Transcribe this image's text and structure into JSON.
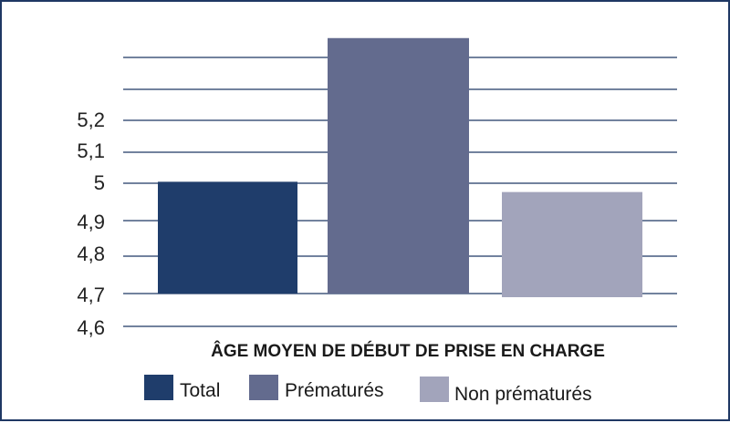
{
  "chart_data": {
    "type": "bar",
    "title": "",
    "xlabel": "ÂGE MOYEN DE DÉBUT DE PRISE EN CHARGE",
    "ylabel": "",
    "ylim": [
      4.6,
      5.5
    ],
    "yticks": [
      "4,6",
      "4,7",
      "4,8",
      "4,9",
      "5",
      "5,1",
      "5,2"
    ],
    "grid": true,
    "legend_position": "bottom",
    "series": [
      {
        "name": "Total",
        "value": 5.03,
        "color": "#1f3d6b"
      },
      {
        "name": "Prématurés",
        "value": 5.45,
        "color": "#636b8e"
      },
      {
        "name": "Non prématurés",
        "value": 5.0,
        "color": "#a2a4bb"
      }
    ]
  }
}
